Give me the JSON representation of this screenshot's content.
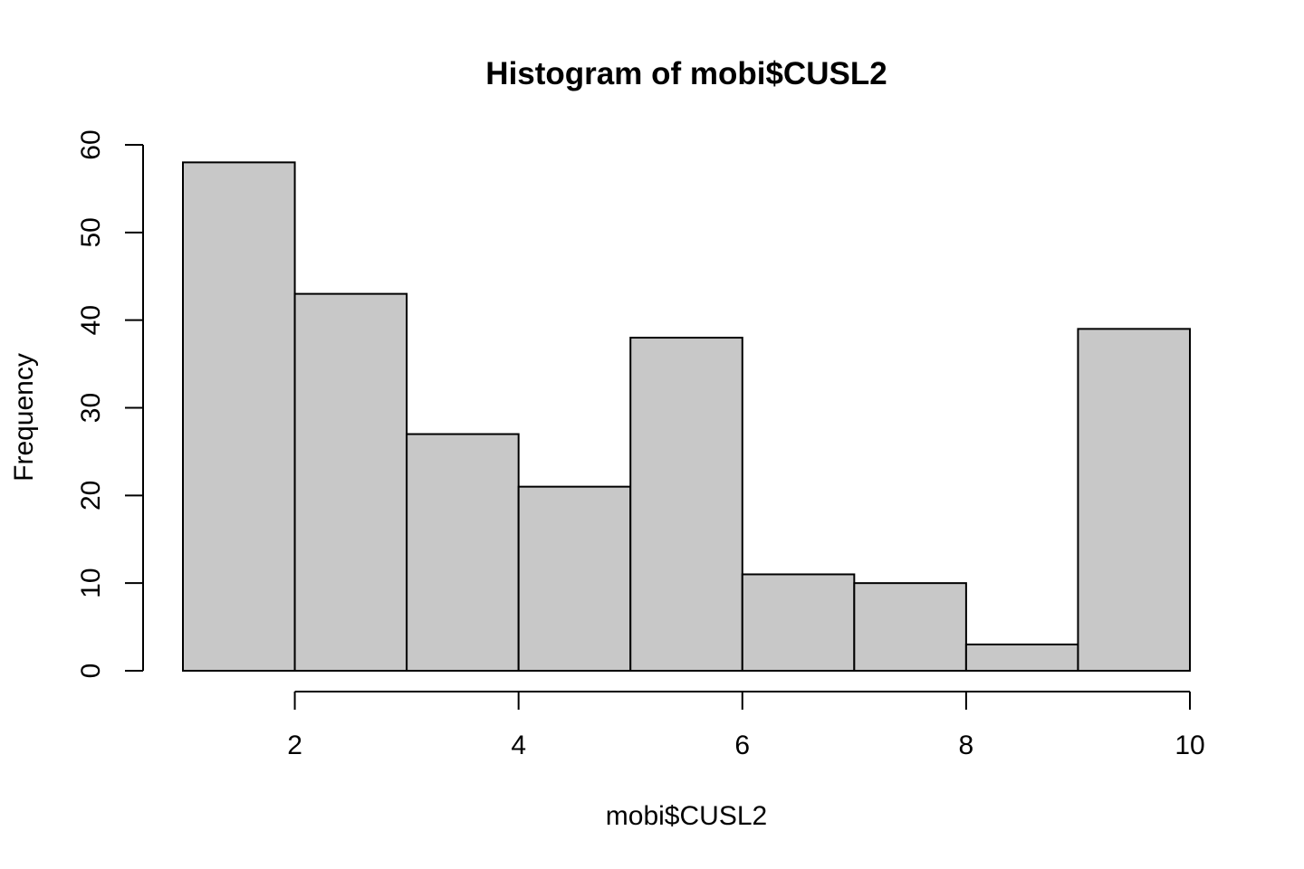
{
  "chart_data": {
    "type": "bar",
    "title": "Histogram of mobi$CUSL2",
    "xlabel": "mobi$CUSL2",
    "ylabel": "Frequency",
    "bins": [
      {
        "from": 1,
        "to": 2,
        "count": 58
      },
      {
        "from": 2,
        "to": 3,
        "count": 43
      },
      {
        "from": 3,
        "to": 4,
        "count": 27
      },
      {
        "from": 4,
        "to": 5,
        "count": 21
      },
      {
        "from": 5,
        "to": 6,
        "count": 38
      },
      {
        "from": 6,
        "to": 7,
        "count": 11
      },
      {
        "from": 7,
        "to": 8,
        "count": 10
      },
      {
        "from": 8,
        "to": 9,
        "count": 3
      },
      {
        "from": 9,
        "to": 10,
        "count": 39
      }
    ],
    "x_ticks": [
      2,
      4,
      6,
      8,
      10
    ],
    "x_tick_labels": [
      "2",
      "4",
      "6",
      "8",
      "10"
    ],
    "y_ticks": [
      0,
      10,
      20,
      30,
      40,
      50,
      60
    ],
    "y_tick_labels": [
      "0",
      "10",
      "20",
      "30",
      "40",
      "50",
      "60"
    ],
    "xlim": [
      1,
      10
    ],
    "ylim": [
      0,
      60
    ],
    "grid": false,
    "bar_fill": "#c8c8c8",
    "bar_stroke": "#000000"
  }
}
